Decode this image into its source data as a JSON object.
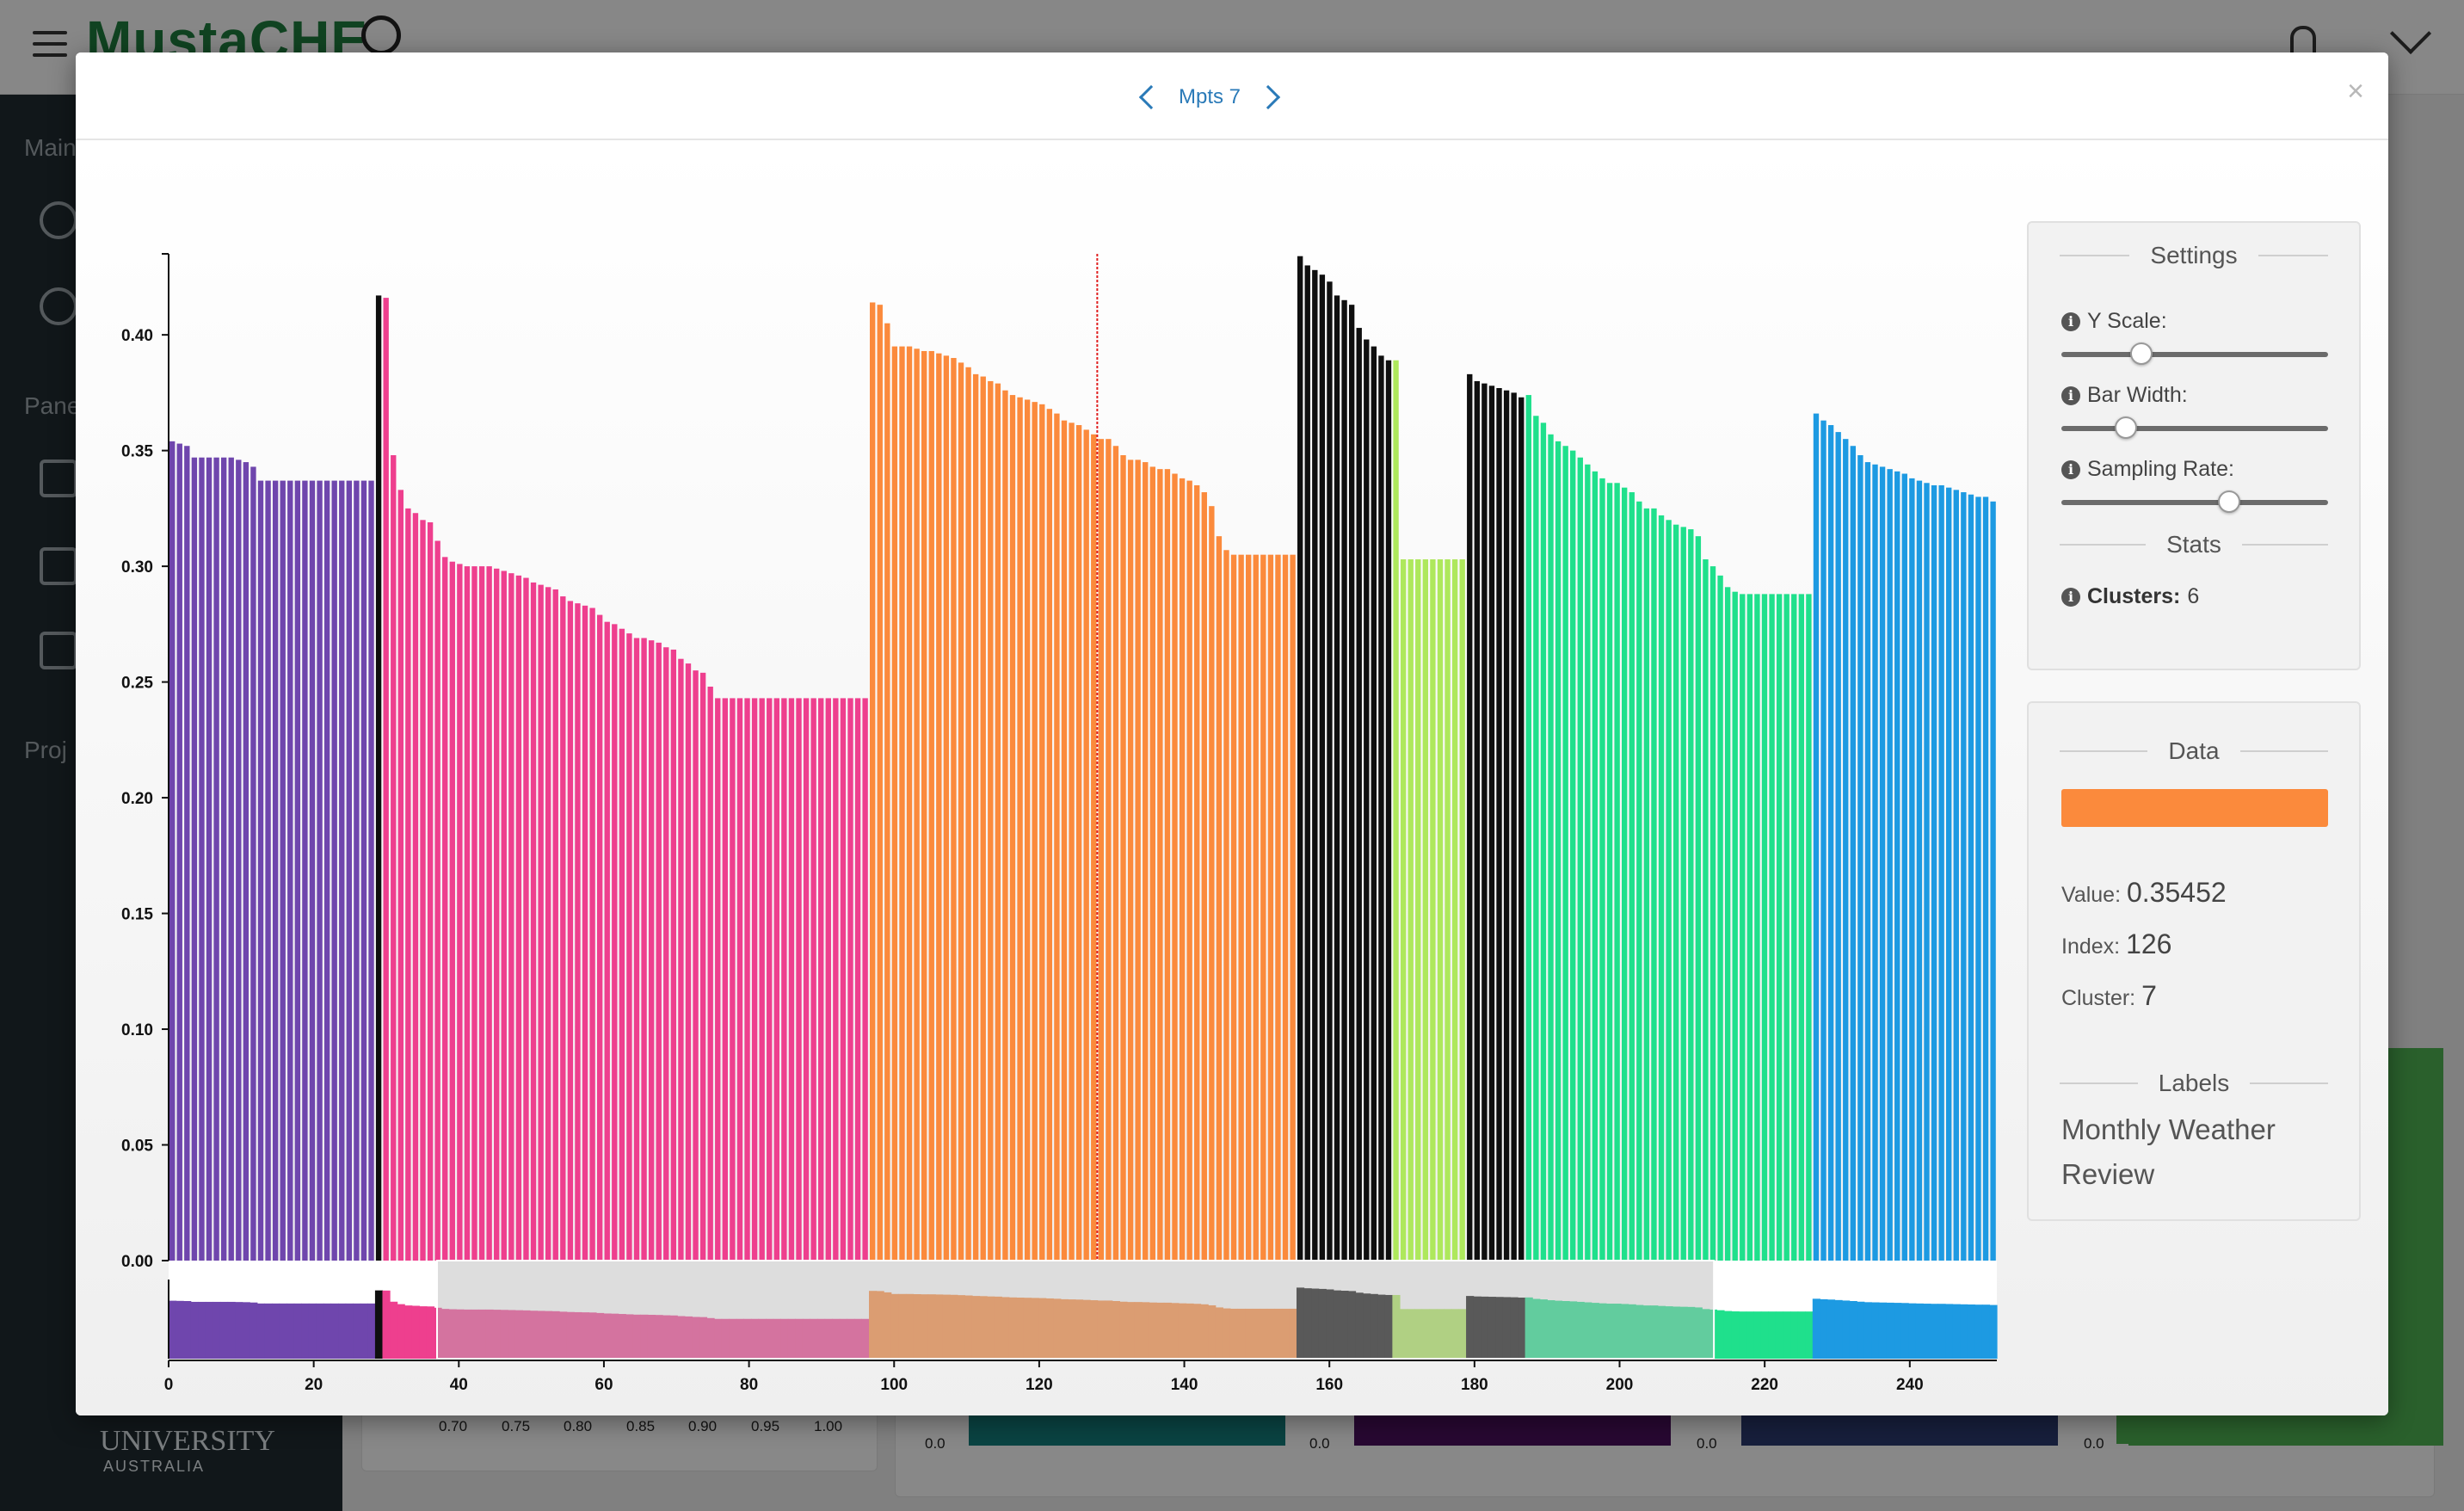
{
  "background": {
    "logo_text": "MustaCHE",
    "sidebar_labels": [
      "Main",
      "Panel",
      "Proj"
    ],
    "jcu_name": "UNIVERSITY",
    "jcu_country": "AUSTRALIA",
    "bottom_ticks": [
      "0.70",
      "0.75",
      "0.80",
      "0.85",
      "0.90",
      "0.95",
      "1.00"
    ],
    "zero_labels": [
      "0.0",
      "0.0",
      "0.0",
      "0.0"
    ]
  },
  "modal": {
    "title": "Mpts 7",
    "close_label": "×"
  },
  "settings": {
    "heading": "Settings",
    "y_scale_label": "Y Scale:",
    "y_scale_value": 0.28,
    "bar_width_label": "Bar Width:",
    "bar_width_value": 0.22,
    "sampling_label": "Sampling Rate:",
    "sampling_value": 0.64,
    "stats_heading": "Stats",
    "clusters_label": "Clusters:",
    "clusters_value": "6"
  },
  "data_panel": {
    "heading": "Data",
    "swatch_color": "#fb8a3c",
    "value_label": "Value:",
    "value": "0.35452",
    "index_label": "Index:",
    "index": "126",
    "cluster_label": "Cluster:",
    "cluster": "7",
    "labels_heading": "Labels",
    "label_text": "Monthly Weather Review"
  },
  "chart_data": {
    "type": "bar",
    "ylim": [
      0,
      0.435
    ],
    "xlim": [
      0,
      252
    ],
    "yticks": [
      "0.00",
      "0.05",
      "0.10",
      "0.15",
      "0.20",
      "0.25",
      "0.30",
      "0.35",
      "0.40"
    ],
    "xticks": [
      "0",
      "20",
      "40",
      "60",
      "80",
      "100",
      "120",
      "140",
      "160",
      "180",
      "200",
      "220",
      "240"
    ],
    "highlight_index": 128,
    "brush_range": [
      37,
      213
    ],
    "colors": {
      "purple": "#6f46ad",
      "black": "#0f0f0f",
      "pink": "#ee3f8e",
      "orange": "#fb8a3c",
      "lime": "#aee85c",
      "green": "#1fe08c",
      "blue": "#1d9ae2"
    },
    "segments": [
      {
        "color": "purple",
        "values": [
          0.354,
          0.353,
          0.352,
          0.347,
          0.347,
          0.347,
          0.347,
          0.347,
          0.347,
          0.346,
          0.345,
          0.343,
          0.337,
          0.337,
          0.337,
          0.337,
          0.337,
          0.337,
          0.337,
          0.337,
          0.337,
          0.337,
          0.337,
          0.337,
          0.337,
          0.337,
          0.337,
          0.337
        ]
      },
      {
        "color": "black",
        "values": [
          0.417
        ]
      },
      {
        "color": "pink",
        "values": [
          0.416,
          0.348,
          0.333,
          0.325,
          0.323,
          0.32,
          0.319,
          0.311,
          0.304,
          0.302,
          0.301,
          0.3,
          0.3,
          0.3,
          0.3,
          0.299,
          0.298,
          0.297,
          0.296,
          0.295,
          0.293,
          0.292,
          0.291,
          0.29,
          0.287,
          0.285,
          0.284,
          0.283,
          0.282,
          0.279,
          0.276,
          0.275,
          0.273,
          0.271,
          0.269,
          0.269,
          0.268,
          0.267,
          0.265,
          0.264,
          0.26,
          0.258,
          0.255,
          0.254,
          0.248,
          0.243,
          0.243,
          0.243,
          0.243,
          0.243,
          0.243,
          0.243,
          0.243,
          0.243,
          0.243,
          0.243,
          0.243,
          0.243,
          0.243,
          0.243,
          0.243,
          0.243,
          0.243,
          0.243,
          0.243,
          0.243
        ]
      },
      {
        "color": "orange",
        "values": [
          0.414,
          0.413,
          0.405,
          0.395,
          0.395,
          0.395,
          0.394,
          0.393,
          0.393,
          0.392,
          0.391,
          0.39,
          0.388,
          0.386,
          0.383,
          0.382,
          0.38,
          0.379,
          0.376,
          0.374,
          0.373,
          0.372,
          0.371,
          0.37,
          0.368,
          0.366,
          0.363,
          0.362,
          0.361,
          0.359,
          0.357,
          0.355,
          0.355,
          0.352,
          0.348,
          0.346,
          0.346,
          0.345,
          0.343,
          0.342,
          0.342,
          0.34,
          0.338,
          0.337,
          0.335,
          0.332,
          0.326,
          0.313,
          0.307,
          0.305,
          0.305,
          0.305,
          0.305,
          0.305,
          0.305,
          0.305,
          0.305,
          0.305
        ]
      },
      {
        "color": "black",
        "values": [
          0.434,
          0.43,
          0.428,
          0.426,
          0.423,
          0.417,
          0.415,
          0.413,
          0.403,
          0.398,
          0.395,
          0.391,
          0.389
        ]
      },
      {
        "color": "lime",
        "values": [
          0.389,
          0.303,
          0.303,
          0.303,
          0.303,
          0.303,
          0.303,
          0.303,
          0.303,
          0.303
        ]
      },
      {
        "color": "black",
        "values": [
          0.383,
          0.38,
          0.379,
          0.378,
          0.377,
          0.376,
          0.375,
          0.373
        ]
      },
      {
        "color": "green",
        "values": [
          0.374,
          0.365,
          0.362,
          0.357,
          0.354,
          0.352,
          0.35,
          0.347,
          0.344,
          0.341,
          0.338,
          0.336,
          0.336,
          0.334,
          0.332,
          0.328,
          0.325,
          0.325,
          0.322,
          0.32,
          0.318,
          0.317,
          0.316,
          0.313,
          0.303,
          0.3,
          0.296,
          0.291,
          0.289,
          0.288,
          0.288,
          0.288,
          0.288,
          0.288,
          0.288,
          0.288,
          0.288,
          0.288,
          0.288
        ]
      },
      {
        "color": "blue",
        "values": [
          0.366,
          0.363,
          0.361,
          0.358,
          0.355,
          0.352,
          0.348,
          0.345,
          0.344,
          0.343,
          0.342,
          0.341,
          0.34,
          0.338,
          0.337,
          0.336,
          0.335,
          0.335,
          0.334,
          0.333,
          0.332,
          0.331,
          0.33,
          0.33,
          0.328
        ]
      }
    ]
  }
}
